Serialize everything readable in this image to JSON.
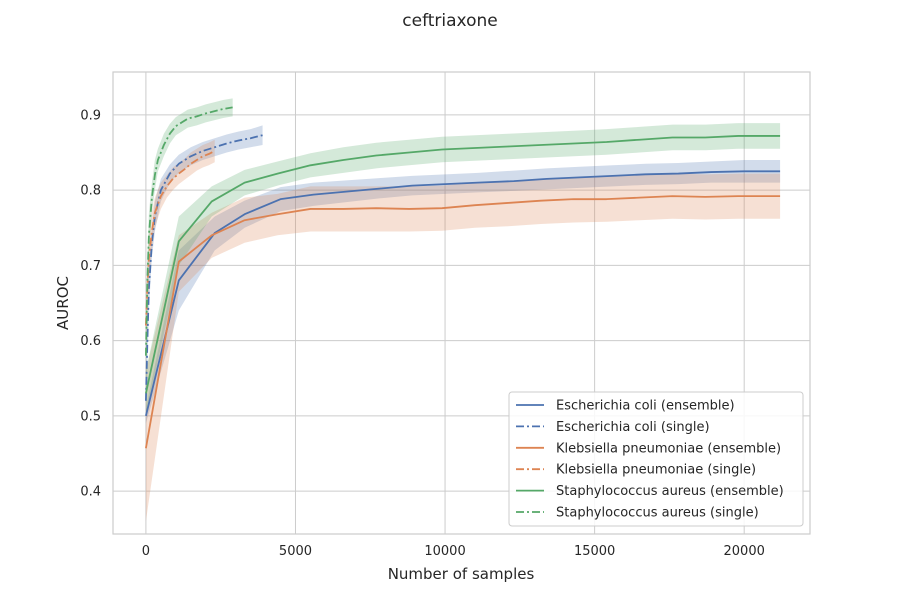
{
  "chart_data": {
    "type": "line",
    "title": "ceftriaxone",
    "xlabel": "Number of samples",
    "ylabel": "AUROC",
    "xlim": [
      -1100,
      22200
    ],
    "ylim": [
      0.343,
      0.957
    ],
    "xticks": [
      0,
      5000,
      10000,
      15000,
      20000
    ],
    "xtick_labels": [
      "0",
      "5000",
      "10000",
      "15000",
      "20000"
    ],
    "yticks": [
      0.4,
      0.5,
      0.6,
      0.7,
      0.8,
      0.9
    ],
    "ytick_labels": [
      "0.4",
      "0.5",
      "0.6",
      "0.7",
      "0.8",
      "0.9"
    ],
    "grid": true,
    "legend_position": "lower-right",
    "series": [
      {
        "name": "Escherichia coli (ensemble)",
        "color": "#4c72b0",
        "dash": "solid",
        "x": [
          0,
          1100,
          2300,
          3300,
          4500,
          5600,
          6700,
          7800,
          8900,
          10000,
          11100,
          12300,
          13400,
          14500,
          15600,
          16700,
          17800,
          18900,
          20000,
          21200
        ],
        "y": [
          0.5,
          0.68,
          0.743,
          0.768,
          0.788,
          0.794,
          0.798,
          0.802,
          0.806,
          0.808,
          0.81,
          0.812,
          0.815,
          0.817,
          0.819,
          0.821,
          0.822,
          0.824,
          0.825,
          0.825
        ],
        "lower": [
          0.49,
          0.64,
          0.72,
          0.75,
          0.772,
          0.779,
          0.784,
          0.789,
          0.793,
          0.795,
          0.797,
          0.799,
          0.801,
          0.803,
          0.805,
          0.807,
          0.808,
          0.81,
          0.81,
          0.81
        ],
        "upper": [
          0.51,
          0.72,
          0.765,
          0.786,
          0.804,
          0.81,
          0.813,
          0.816,
          0.819,
          0.821,
          0.823,
          0.826,
          0.829,
          0.831,
          0.833,
          0.835,
          0.836,
          0.838,
          0.84,
          0.84
        ]
      },
      {
        "name": "Escherichia coli (single)",
        "color": "#4c72b0",
        "dash": "dashdot",
        "x": [
          0,
          50,
          100,
          200,
          300,
          500,
          800,
          1100,
          1500,
          1900,
          2300,
          2700,
          3100,
          3500,
          3900
        ],
        "y": [
          0.52,
          0.6,
          0.67,
          0.73,
          0.765,
          0.8,
          0.822,
          0.835,
          0.845,
          0.852,
          0.857,
          0.862,
          0.866,
          0.869,
          0.873
        ],
        "lower": [
          0.5,
          0.57,
          0.64,
          0.71,
          0.745,
          0.785,
          0.81,
          0.823,
          0.833,
          0.84,
          0.845,
          0.85,
          0.854,
          0.857,
          0.86
        ],
        "upper": [
          0.54,
          0.63,
          0.7,
          0.75,
          0.785,
          0.815,
          0.834,
          0.847,
          0.857,
          0.864,
          0.869,
          0.874,
          0.878,
          0.881,
          0.886
        ]
      },
      {
        "name": "Klebsiella pneumoniae (ensemble)",
        "color": "#dd8452",
        "dash": "solid",
        "x": [
          0,
          1100,
          2200,
          3300,
          4400,
          5500,
          6600,
          7700,
          8800,
          9900,
          11000,
          12100,
          13200,
          14300,
          15400,
          16500,
          17600,
          18700,
          19800,
          21200
        ],
        "y": [
          0.457,
          0.705,
          0.74,
          0.76,
          0.768,
          0.775,
          0.775,
          0.776,
          0.775,
          0.776,
          0.78,
          0.783,
          0.786,
          0.788,
          0.788,
          0.79,
          0.792,
          0.791,
          0.792,
          0.792
        ],
        "lower": [
          0.36,
          0.665,
          0.71,
          0.73,
          0.74,
          0.745,
          0.745,
          0.745,
          0.745,
          0.746,
          0.75,
          0.752,
          0.755,
          0.757,
          0.758,
          0.76,
          0.762,
          0.761,
          0.762,
          0.762
        ],
        "upper": [
          0.56,
          0.74,
          0.77,
          0.79,
          0.795,
          0.805,
          0.805,
          0.805,
          0.805,
          0.806,
          0.81,
          0.812,
          0.815,
          0.817,
          0.818,
          0.82,
          0.822,
          0.821,
          0.822,
          0.822
        ]
      },
      {
        "name": "Klebsiella pneumoniae (single)",
        "color": "#dd8452",
        "dash": "dashdot",
        "x": [
          0,
          50,
          100,
          200,
          300,
          500,
          700,
          900,
          1100,
          1300,
          1500,
          1700,
          1900,
          2100,
          2300
        ],
        "y": [
          0.62,
          0.67,
          0.71,
          0.745,
          0.77,
          0.792,
          0.805,
          0.815,
          0.822,
          0.828,
          0.835,
          0.84,
          0.845,
          0.848,
          0.852
        ],
        "lower": [
          0.58,
          0.64,
          0.68,
          0.72,
          0.75,
          0.775,
          0.79,
          0.8,
          0.808,
          0.814,
          0.82,
          0.826,
          0.83,
          0.833,
          0.837
        ],
        "upper": [
          0.66,
          0.7,
          0.74,
          0.77,
          0.79,
          0.81,
          0.82,
          0.83,
          0.836,
          0.842,
          0.85,
          0.855,
          0.86,
          0.863,
          0.867
        ]
      },
      {
        "name": "Staphylococcus aureus (ensemble)",
        "color": "#55a868",
        "dash": "solid",
        "x": [
          0,
          1100,
          2200,
          3300,
          4400,
          5500,
          6600,
          7700,
          8800,
          9900,
          11000,
          12100,
          13200,
          14300,
          15400,
          16500,
          17600,
          18700,
          19800,
          21200
        ],
        "y": [
          0.53,
          0.732,
          0.785,
          0.81,
          0.822,
          0.833,
          0.84,
          0.846,
          0.85,
          0.854,
          0.856,
          0.858,
          0.86,
          0.862,
          0.864,
          0.867,
          0.87,
          0.87,
          0.872,
          0.872
        ],
        "lower": [
          0.5,
          0.7,
          0.765,
          0.793,
          0.806,
          0.817,
          0.823,
          0.829,
          0.833,
          0.837,
          0.839,
          0.841,
          0.843,
          0.845,
          0.847,
          0.85,
          0.853,
          0.853,
          0.855,
          0.855
        ],
        "upper": [
          0.56,
          0.765,
          0.805,
          0.827,
          0.838,
          0.849,
          0.857,
          0.863,
          0.867,
          0.871,
          0.873,
          0.875,
          0.877,
          0.879,
          0.881,
          0.884,
          0.887,
          0.887,
          0.889,
          0.889
        ]
      },
      {
        "name": "Staphylococcus aureus (single)",
        "color": "#55a868",
        "dash": "dashdot",
        "x": [
          0,
          50,
          100,
          200,
          300,
          400,
          600,
          800,
          1000,
          1200,
          1400,
          1700,
          2000,
          2300,
          2600,
          2900
        ],
        "y": [
          0.58,
          0.68,
          0.74,
          0.79,
          0.82,
          0.84,
          0.86,
          0.875,
          0.885,
          0.89,
          0.895,
          0.898,
          0.902,
          0.905,
          0.908,
          0.91
        ],
        "lower": [
          0.55,
          0.65,
          0.71,
          0.77,
          0.8,
          0.825,
          0.845,
          0.862,
          0.873,
          0.878,
          0.883,
          0.886,
          0.89,
          0.893,
          0.896,
          0.898
        ],
        "upper": [
          0.61,
          0.71,
          0.77,
          0.81,
          0.84,
          0.855,
          0.875,
          0.888,
          0.897,
          0.902,
          0.907,
          0.91,
          0.914,
          0.917,
          0.92,
          0.922
        ]
      }
    ]
  }
}
